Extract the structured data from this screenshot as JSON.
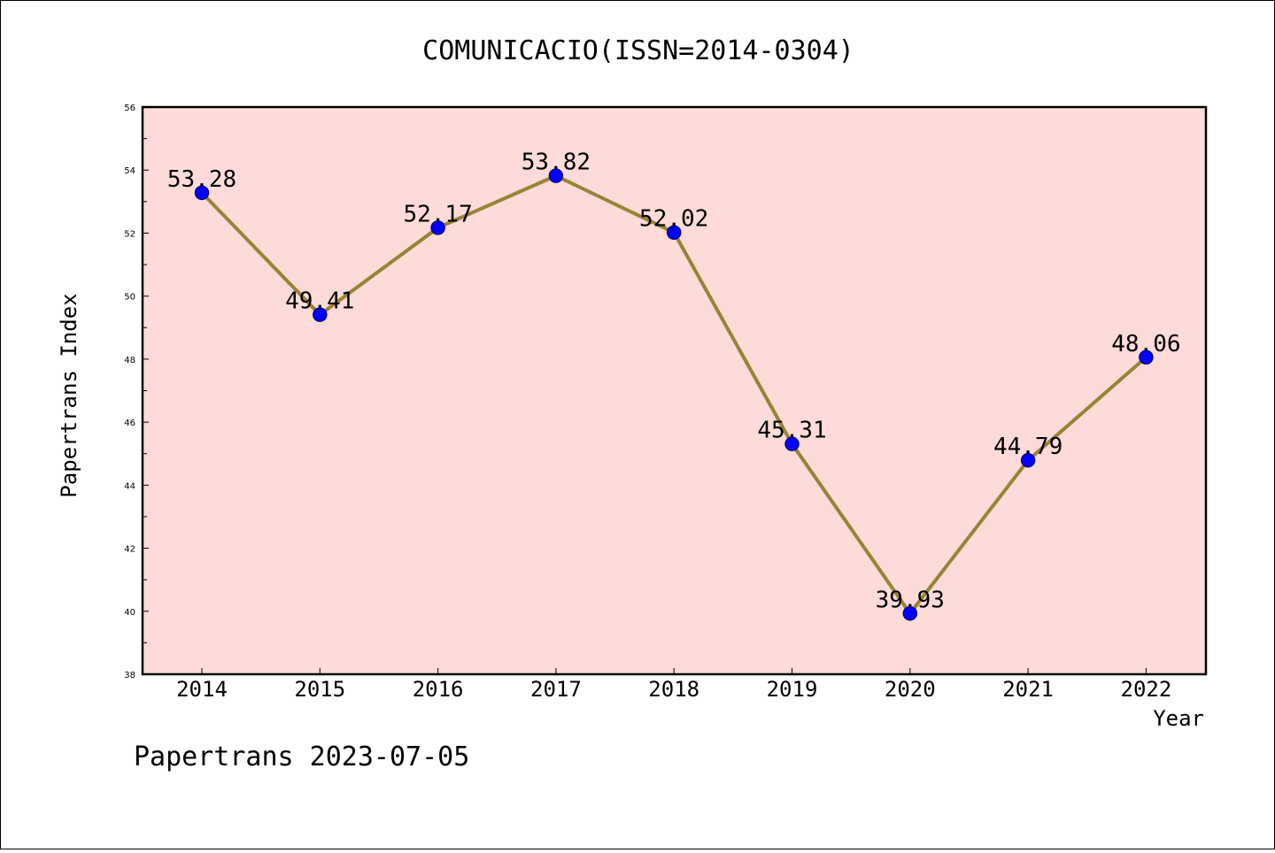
{
  "chart_data": {
    "type": "line",
    "title": "COMUNICACIO(ISSN=2014-0304)",
    "xlabel": "Year",
    "ylabel": "Papertrans Index",
    "categories": [
      "2014",
      "2015",
      "2016",
      "2017",
      "2018",
      "2019",
      "2020",
      "2021",
      "2022"
    ],
    "series": [
      {
        "values": [
          53.28,
          49.41,
          52.17,
          53.82,
          52.02,
          45.31,
          39.93,
          44.79,
          48.06
        ],
        "data_labels": [
          "53.28",
          "49.41",
          "52.17",
          "53.82",
          "52.02",
          "45.31",
          "39.93",
          "44.79",
          "48.06"
        ]
      }
    ],
    "ylim": [
      38,
      56
    ],
    "yticks": [
      "38",
      "40",
      "42",
      "44",
      "46",
      "48",
      "50",
      "52",
      "54",
      "56"
    ],
    "grid": false,
    "legend": "none"
  },
  "footer": "Papertrans 2023-07-05",
  "colors": {
    "plot_background": "#fddbd8",
    "line": "#9a8236",
    "marker": "#0000ff",
    "marker_edge": "#00008b"
  }
}
